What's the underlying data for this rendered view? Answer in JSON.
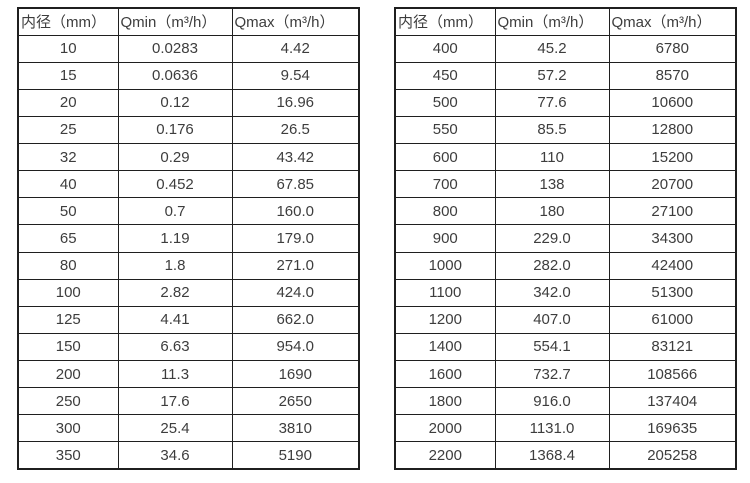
{
  "page": {
    "background": "#ffffff",
    "text_color": "#3d3d3d",
    "border_color": "#1f1f1f"
  },
  "tables": [
    {
      "headers": [
        "内径（mm）",
        "Qmin（m³/h）",
        "Qmax（m³/h）"
      ],
      "rows": [
        [
          "10",
          "0.0283",
          "4.42"
        ],
        [
          "15",
          "0.0636",
          "9.54"
        ],
        [
          "20",
          "0.12",
          "16.96"
        ],
        [
          "25",
          "0.176",
          "26.5"
        ],
        [
          "32",
          "0.29",
          "43.42"
        ],
        [
          "40",
          "0.452",
          "67.85"
        ],
        [
          "50",
          "0.7",
          "160.0"
        ],
        [
          "65",
          "1.19",
          "179.0"
        ],
        [
          "80",
          "1.8",
          "271.0"
        ],
        [
          "100",
          "2.82",
          "424.0"
        ],
        [
          "125",
          "4.41",
          "662.0"
        ],
        [
          "150",
          "6.63",
          "954.0"
        ],
        [
          "200",
          "11.3",
          "1690"
        ],
        [
          "250",
          "17.6",
          "2650"
        ],
        [
          "300",
          "25.4",
          "3810"
        ],
        [
          "350",
          "34.6",
          "5190"
        ]
      ]
    },
    {
      "headers": [
        "内径（mm）",
        "Qmin（m³/h）",
        "Qmax（m³/h）"
      ],
      "rows": [
        [
          "400",
          "45.2",
          "6780"
        ],
        [
          "450",
          "57.2",
          "8570"
        ],
        [
          "500",
          "77.6",
          "10600"
        ],
        [
          "550",
          "85.5",
          "12800"
        ],
        [
          "600",
          "110",
          "15200"
        ],
        [
          "700",
          "138",
          "20700"
        ],
        [
          "800",
          "180",
          "27100"
        ],
        [
          "900",
          "229.0",
          "34300"
        ],
        [
          "1000",
          "282.0",
          "42400"
        ],
        [
          "1100",
          "342.0",
          "51300"
        ],
        [
          "1200",
          "407.0",
          "61000"
        ],
        [
          "1400",
          "554.1",
          "83121"
        ],
        [
          "1600",
          "732.7",
          "108566"
        ],
        [
          "1800",
          "916.0",
          "137404"
        ],
        [
          "2000",
          "1131.0",
          "169635"
        ],
        [
          "2200",
          "1368.4",
          "205258"
        ]
      ]
    }
  ]
}
